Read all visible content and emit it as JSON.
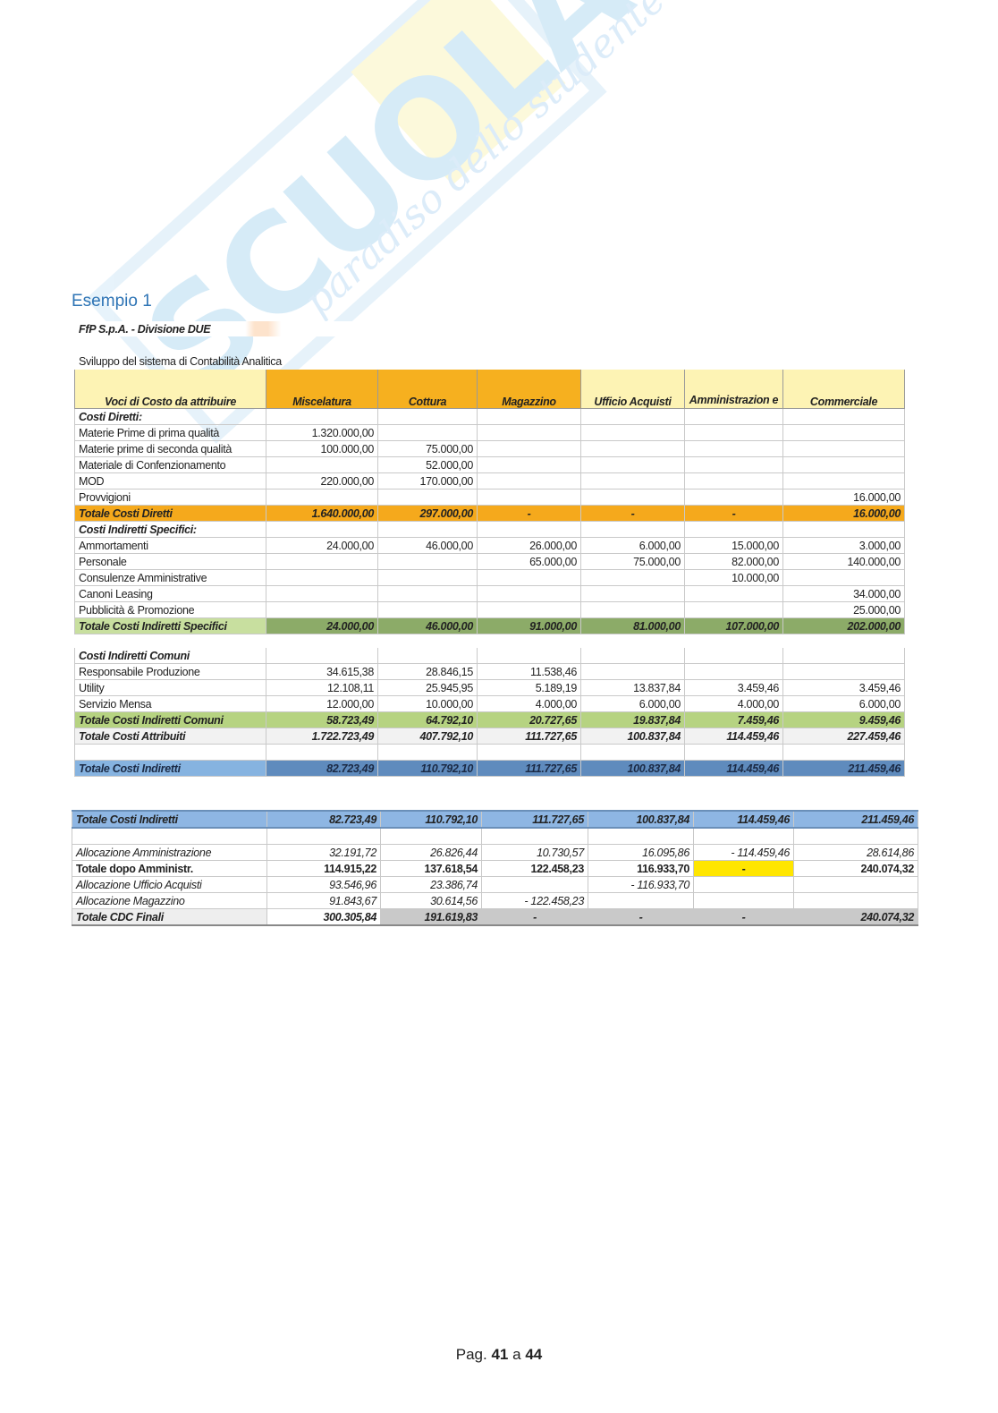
{
  "watermark": {
    "logo": "Scuola.net",
    "tagline": "paradiso dello studente"
  },
  "heading": "Esempio 1",
  "table1": {
    "title": "FfP S.p.A. - Divisione DUE",
    "subtitle": "Sviluppo del sistema di Contabilità Analitica",
    "header_label": "Voci di Costo da attribuire",
    "columns": [
      "Miscelatura",
      "Cottura",
      "Magazzino",
      "Ufficio Acquisti",
      "Amministrazion e",
      "Commerciale"
    ],
    "rows": [
      {
        "label": "Costi Diretti:",
        "style": "section",
        "values": [
          "",
          "",
          "",
          "",
          "",
          ""
        ]
      },
      {
        "label": "Materie Prime di prima qualità",
        "style": "normal",
        "values": [
          "1.320.000,00",
          "",
          "",
          "",
          "",
          ""
        ]
      },
      {
        "label": "Materie prime di seconda qualità",
        "style": "normal",
        "values": [
          "100.000,00",
          "75.000,00",
          "",
          "",
          "",
          ""
        ]
      },
      {
        "label": "Materiale di Confenzionamento",
        "style": "normal",
        "values": [
          "",
          "52.000,00",
          "",
          "",
          "",
          ""
        ]
      },
      {
        "label": "MOD",
        "style": "normal",
        "values": [
          "220.000,00",
          "170.000,00",
          "",
          "",
          "",
          ""
        ]
      },
      {
        "label": "Provvigioni",
        "style": "normal",
        "values": [
          "",
          "",
          "",
          "",
          "",
          "16.000,00"
        ]
      },
      {
        "label": "Totale Costi Diretti",
        "style": "orange",
        "values": [
          "1.640.000,00",
          "297.000,00",
          "-",
          "-",
          "-",
          "16.000,00"
        ]
      },
      {
        "label": "Costi Indiretti Specifici:",
        "style": "section",
        "values": [
          "",
          "",
          "",
          "",
          "",
          ""
        ]
      },
      {
        "label": "Ammortamenti",
        "style": "normal",
        "values": [
          "24.000,00",
          "46.000,00",
          "26.000,00",
          "6.000,00",
          "15.000,00",
          "3.000,00"
        ]
      },
      {
        "label": "Personale",
        "style": "normal",
        "values": [
          "",
          "",
          "65.000,00",
          "75.000,00",
          "82.000,00",
          "140.000,00"
        ]
      },
      {
        "label": "Consulenze Amministrative",
        "style": "normal",
        "values": [
          "",
          "",
          "",
          "",
          "10.000,00",
          ""
        ]
      },
      {
        "label": "Canoni Leasing",
        "style": "normal",
        "values": [
          "",
          "",
          "",
          "",
          "",
          "34.000,00"
        ]
      },
      {
        "label": "Pubblicità & Promozione",
        "style": "normal",
        "values": [
          "",
          "",
          "",
          "",
          "",
          "25.000,00"
        ]
      },
      {
        "label": "Totale Costi Indiretti Specifici",
        "style": "green",
        "values": [
          "24.000,00",
          "46.000,00",
          "91.000,00",
          "81.000,00",
          "107.000,00",
          "202.000,00"
        ]
      },
      {
        "label": "",
        "style": "spacer",
        "values": [
          "",
          "",
          "",
          "",
          "",
          ""
        ]
      },
      {
        "label": "Costi Indiretti Comuni",
        "style": "section",
        "values": [
          "",
          "",
          "",
          "",
          "",
          ""
        ]
      },
      {
        "label": "Responsabile Produzione",
        "style": "normal",
        "values": [
          "34.615,38",
          "28.846,15",
          "11.538,46",
          "",
          "",
          ""
        ]
      },
      {
        "label": "Utility",
        "style": "normal",
        "values": [
          "12.108,11",
          "25.945,95",
          "5.189,19",
          "13.837,84",
          "3.459,46",
          "3.459,46"
        ]
      },
      {
        "label": "Servizio Mensa",
        "style": "normal",
        "values": [
          "12.000,00",
          "10.000,00",
          "4.000,00",
          "6.000,00",
          "4.000,00",
          "6.000,00"
        ]
      },
      {
        "label": "Totale Costi Indiretti Comuni",
        "style": "green2",
        "values": [
          "58.723,49",
          "64.792,10",
          "20.727,65",
          "19.837,84",
          "7.459,46",
          "9.459,46"
        ]
      },
      {
        "label": "Totale Costi Attribuiti",
        "style": "grey",
        "values": [
          "1.722.723,49",
          "407.792,10",
          "111.727,65",
          "100.837,84",
          "114.459,46",
          "227.459,46"
        ]
      },
      {
        "label": "",
        "style": "normal",
        "values": [
          "",
          "",
          "",
          "",
          "",
          ""
        ]
      },
      {
        "label": "Totale Costi Indiretti",
        "style": "blue",
        "values": [
          "82.723,49",
          "110.792,10",
          "111.727,65",
          "100.837,84",
          "114.459,46",
          "211.459,46"
        ]
      }
    ]
  },
  "table2": {
    "rows": [
      {
        "label": "Totale Costi Indiretti",
        "style": "blue2",
        "values": [
          "82.723,49",
          "110.792,10",
          "111.727,65",
          "100.837,84",
          "114.459,46",
          "211.459,46"
        ]
      },
      {
        "label": "",
        "style": "normal",
        "values": [
          "",
          "",
          "",
          "",
          "",
          ""
        ]
      },
      {
        "label": "Allocazione Amministrazione",
        "style": "it",
        "values": [
          "32.191,72",
          "26.826,44",
          "10.730,57",
          "16.095,86",
          "- 114.459,46",
          "28.614,86"
        ]
      },
      {
        "label": "Totale dopo Amministr.",
        "style": "bold",
        "values": [
          "114.915,22",
          "137.618,54",
          "122.458,23",
          "116.933,70",
          "-",
          "240.074,32"
        ]
      },
      {
        "label": "Allocazione Ufficio Acquisti",
        "style": "it",
        "values": [
          "93.546,96",
          "23.386,74",
          "",
          "- 116.933,70",
          "",
          ""
        ]
      },
      {
        "label": "Allocazione Magazzino",
        "style": "it",
        "values": [
          "91.843,67",
          "30.614,56",
          "- 122.458,23",
          "",
          "",
          ""
        ]
      },
      {
        "label": "Totale CDC Finali",
        "style": "final",
        "values": [
          "300.305,84",
          "191.619,83",
          "-",
          "-",
          "-",
          "240.074,32"
        ]
      }
    ],
    "highlight_color": "#FFE600"
  },
  "footer": {
    "prefix": "Pag.",
    "page": "41",
    "sep": "a",
    "total": "44"
  }
}
